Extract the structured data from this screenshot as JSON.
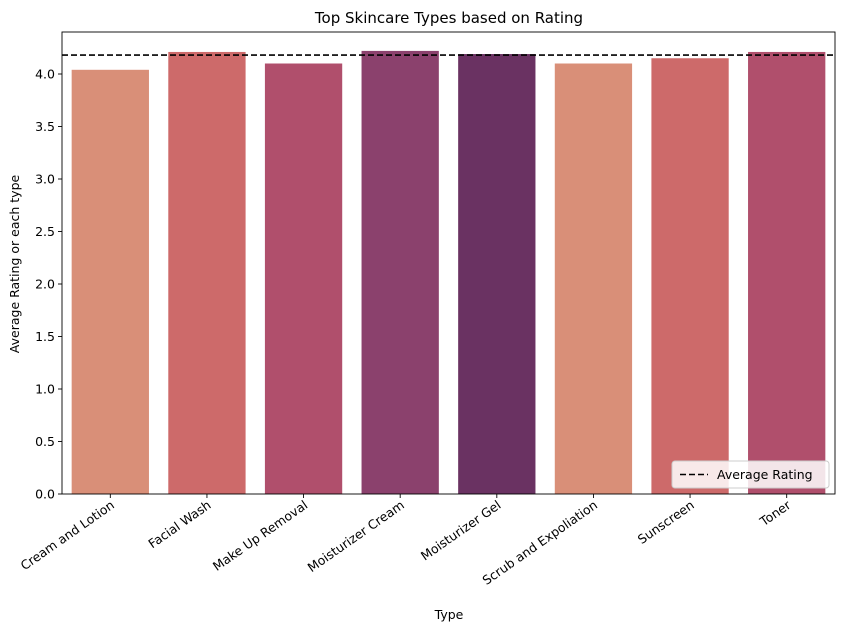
{
  "chart_data": {
    "type": "bar",
    "title": "Top Skincare Types based on Rating",
    "xlabel": "Type",
    "ylabel": "Average Rating or each type",
    "categories": [
      "Cream and Lotion",
      "Facial Wash",
      "Make Up Removal",
      "Moisturizer Cream",
      "Moisturizer Gel",
      "Scrub and Expoliation",
      "Sunscreen",
      "Toner"
    ],
    "values": [
      4.04,
      4.21,
      4.1,
      4.22,
      4.19,
      4.1,
      4.15,
      4.21
    ],
    "colors": [
      "#d98f78",
      "#cd6a6a",
      "#b04f6c",
      "#8b416d",
      "#6a3262",
      "#d98f78",
      "#cd6a6a",
      "#b04f6c"
    ],
    "ylim": [
      0,
      4.4
    ],
    "yticks": [
      "0.0",
      "0.5",
      "1.0",
      "1.5",
      "2.0",
      "2.5",
      "3.0",
      "3.5",
      "4.0"
    ],
    "reference_line": {
      "label": "Average Rating",
      "value": 4.18,
      "style": "dashed",
      "color": "#000000"
    },
    "legend_position": "lower-right",
    "grid": false
  }
}
